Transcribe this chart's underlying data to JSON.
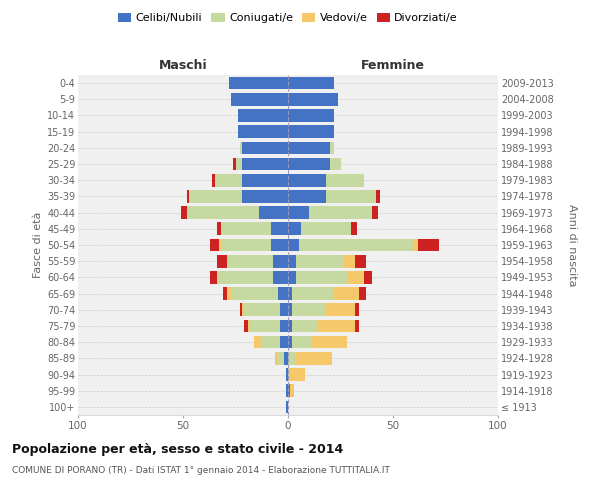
{
  "age_groups": [
    "100+",
    "95-99",
    "90-94",
    "85-89",
    "80-84",
    "75-79",
    "70-74",
    "65-69",
    "60-64",
    "55-59",
    "50-54",
    "45-49",
    "40-44",
    "35-39",
    "30-34",
    "25-29",
    "20-24",
    "15-19",
    "10-14",
    "5-9",
    "0-4"
  ],
  "birth_years": [
    "≤ 1913",
    "1914-1918",
    "1919-1923",
    "1924-1928",
    "1929-1933",
    "1934-1938",
    "1939-1943",
    "1944-1948",
    "1949-1953",
    "1954-1958",
    "1959-1963",
    "1964-1968",
    "1969-1973",
    "1974-1978",
    "1979-1983",
    "1984-1988",
    "1989-1993",
    "1994-1998",
    "1999-2003",
    "2004-2008",
    "2009-2013"
  ],
  "maschi": {
    "celibi": [
      1,
      1,
      1,
      2,
      4,
      4,
      4,
      5,
      7,
      7,
      8,
      8,
      14,
      22,
      22,
      22,
      22,
      24,
      24,
      27,
      28
    ],
    "coniugati": [
      0,
      0,
      0,
      3,
      9,
      14,
      17,
      22,
      27,
      22,
      24,
      24,
      34,
      25,
      13,
      3,
      1,
      0,
      0,
      0,
      0
    ],
    "vedovi": [
      0,
      0,
      0,
      1,
      3,
      1,
      1,
      2,
      0,
      0,
      1,
      0,
      0,
      0,
      0,
      0,
      0,
      0,
      0,
      0,
      0
    ],
    "divorziati": [
      0,
      0,
      0,
      0,
      0,
      2,
      1,
      2,
      3,
      5,
      4,
      2,
      3,
      1,
      1,
      1,
      0,
      0,
      0,
      0,
      0
    ]
  },
  "femmine": {
    "nubili": [
      0,
      1,
      0,
      0,
      2,
      2,
      2,
      2,
      4,
      4,
      5,
      6,
      10,
      18,
      18,
      20,
      20,
      22,
      22,
      24,
      22
    ],
    "coniugate": [
      0,
      0,
      1,
      4,
      9,
      12,
      16,
      20,
      24,
      22,
      55,
      24,
      30,
      24,
      18,
      5,
      2,
      0,
      0,
      0,
      0
    ],
    "vedove": [
      0,
      2,
      7,
      17,
      17,
      18,
      14,
      12,
      8,
      6,
      2,
      0,
      0,
      0,
      0,
      0,
      0,
      0,
      0,
      0,
      0
    ],
    "divorziate": [
      0,
      0,
      0,
      0,
      0,
      2,
      2,
      3,
      4,
      5,
      10,
      3,
      3,
      2,
      0,
      0,
      0,
      0,
      0,
      0,
      0
    ]
  },
  "colors": {
    "celibi": "#4472c4",
    "coniugati": "#c5d9a0",
    "vedovi": "#f5c96a",
    "divorziati": "#cc2222"
  },
  "title": "Popolazione per età, sesso e stato civile - 2014",
  "subtitle": "COMUNE DI PORANO (TR) - Dati ISTAT 1° gennaio 2014 - Elaborazione TUTTITALIA.IT",
  "label_maschi": "Maschi",
  "label_femmine": "Femmine",
  "ylabel_left": "Fasce di età",
  "ylabel_right": "Anni di nascita",
  "xlim": 100,
  "bg_plot": "#f0f0f0",
  "bg_fig": "#ffffff"
}
